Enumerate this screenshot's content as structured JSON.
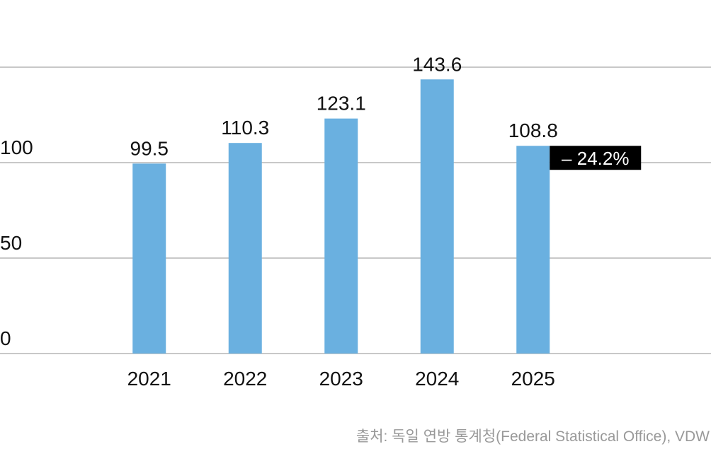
{
  "chart_data": {
    "type": "bar",
    "categories": [
      "2021",
      "2022",
      "2023",
      "2024",
      "2025"
    ],
    "values": [
      99.5,
      110.3,
      123.1,
      143.6,
      108.8
    ],
    "color": "#6ab0e0",
    "ylim": [
      0,
      150
    ],
    "yticks": [
      0,
      50,
      100
    ],
    "grid": true,
    "annotation": "– 24.2%",
    "source": "출처: 독일 연방 통계청(Federal Statistical Office), VDW"
  }
}
